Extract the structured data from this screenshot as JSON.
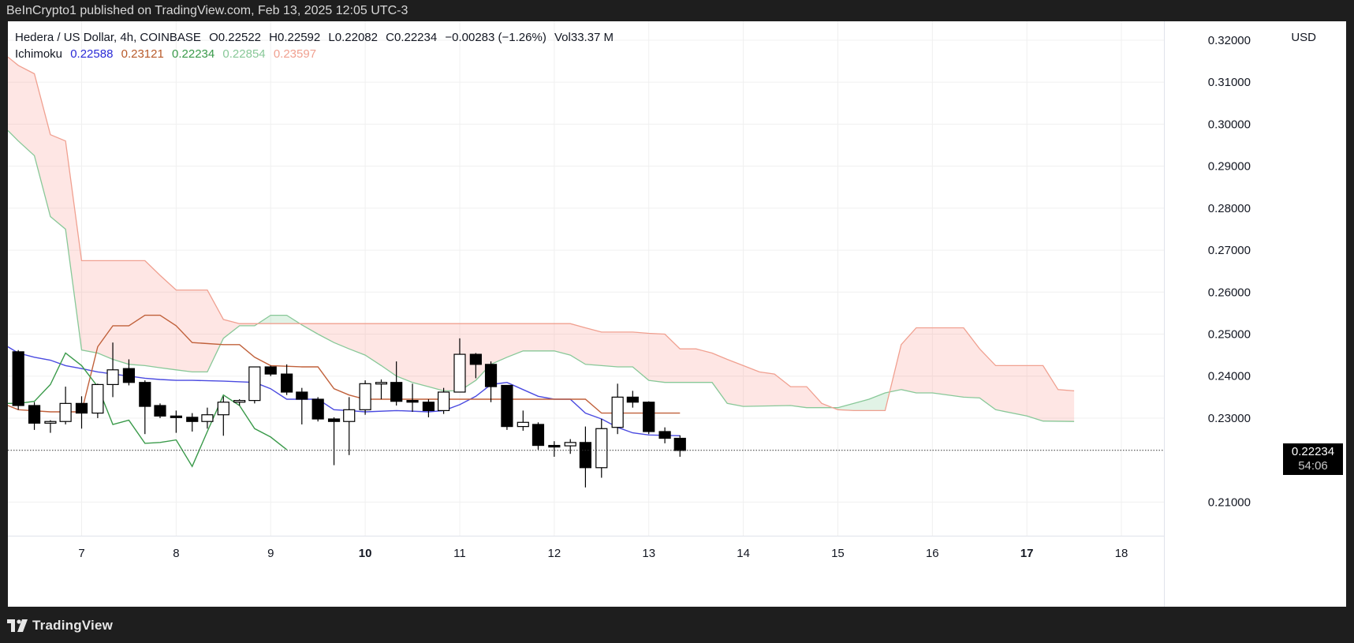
{
  "header": {
    "published": "BeInCrypto1 published on TradingView.com, Feb 13, 2025 12:05 UTC-3"
  },
  "legend": {
    "symbol": "Hedera / US Dollar, 4h, COINBASE",
    "open": "O0.22522",
    "high": "H0.22592",
    "low": "L0.22082",
    "close": "C0.22234",
    "change": "−0.00283 (−1.26%)",
    "volume": "Vol33.37 M",
    "indicator": "Ichimoku",
    "ichimoku_values": [
      "0.22588",
      "0.23121",
      "0.22234",
      "0.22854",
      "0.23597"
    ],
    "ichimoku_colors": [
      "#2a2ad6",
      "#b85a2a",
      "#3a9a4a",
      "#88c898",
      "#f0a090"
    ]
  },
  "currency": "USD",
  "last_price": "0.22234",
  "countdown": "54:06",
  "footer": {
    "brand": "TradingView"
  },
  "chart_data": {
    "type": "candlestick",
    "ylim": [
      0.202,
      0.3245
    ],
    "xlim": [
      6.22,
      18.45
    ],
    "y_ticks": [
      "0.21000",
      "0.23000",
      "0.24000",
      "0.25000",
      "0.26000",
      "0.27000",
      "0.28000",
      "0.29000",
      "0.30000",
      "0.31000",
      "0.32000"
    ],
    "x_ticks": [
      {
        "label": "7",
        "x": 7,
        "bold": false
      },
      {
        "label": "8",
        "x": 8,
        "bold": false
      },
      {
        "label": "9",
        "x": 9,
        "bold": false
      },
      {
        "label": "10",
        "x": 10,
        "bold": true
      },
      {
        "label": "11",
        "x": 11,
        "bold": false
      },
      {
        "label": "12",
        "x": 12,
        "bold": false
      },
      {
        "label": "13",
        "x": 13,
        "bold": false
      },
      {
        "label": "14",
        "x": 14,
        "bold": false
      },
      {
        "label": "15",
        "x": 15,
        "bold": false
      },
      {
        "label": "16",
        "x": 16,
        "bold": false
      },
      {
        "label": "17",
        "x": 17,
        "bold": true
      },
      {
        "label": "18",
        "x": 18,
        "bold": false
      }
    ],
    "candles": [
      {
        "t": 6.33,
        "o": 0.2458,
        "h": 0.2462,
        "l": 0.232,
        "c": 0.233
      },
      {
        "t": 6.5,
        "o": 0.233,
        "h": 0.2338,
        "l": 0.2272,
        "c": 0.2288
      },
      {
        "t": 6.67,
        "o": 0.2288,
        "h": 0.2295,
        "l": 0.2265,
        "c": 0.2292
      },
      {
        "t": 6.83,
        "o": 0.2292,
        "h": 0.2375,
        "l": 0.2285,
        "c": 0.2335
      },
      {
        "t": 7.0,
        "o": 0.2335,
        "h": 0.2352,
        "l": 0.2275,
        "c": 0.2312
      },
      {
        "t": 7.17,
        "o": 0.2312,
        "h": 0.2382,
        "l": 0.23,
        "c": 0.238
      },
      {
        "t": 7.33,
        "o": 0.238,
        "h": 0.248,
        "l": 0.235,
        "c": 0.2415
      },
      {
        "t": 7.5,
        "o": 0.2418,
        "h": 0.244,
        "l": 0.2378,
        "c": 0.2385
      },
      {
        "t": 7.67,
        "o": 0.2385,
        "h": 0.239,
        "l": 0.2262,
        "c": 0.2328
      },
      {
        "t": 7.83,
        "o": 0.233,
        "h": 0.2335,
        "l": 0.23,
        "c": 0.2305
      },
      {
        "t": 8.0,
        "o": 0.2305,
        "h": 0.2318,
        "l": 0.2265,
        "c": 0.2302
      },
      {
        "t": 8.17,
        "o": 0.2302,
        "h": 0.2312,
        "l": 0.2268,
        "c": 0.2292
      },
      {
        "t": 8.33,
        "o": 0.2292,
        "h": 0.2325,
        "l": 0.2275,
        "c": 0.2308
      },
      {
        "t": 8.5,
        "o": 0.2308,
        "h": 0.2352,
        "l": 0.2258,
        "c": 0.2338
      },
      {
        "t": 8.67,
        "o": 0.2338,
        "h": 0.2345,
        "l": 0.233,
        "c": 0.2342
      },
      {
        "t": 8.83,
        "o": 0.2342,
        "h": 0.2422,
        "l": 0.2335,
        "c": 0.2422
      },
      {
        "t": 9.0,
        "o": 0.2422,
        "h": 0.2425,
        "l": 0.24,
        "c": 0.2405
      },
      {
        "t": 9.17,
        "o": 0.2405,
        "h": 0.2428,
        "l": 0.2355,
        "c": 0.2362
      },
      {
        "t": 9.33,
        "o": 0.2362,
        "h": 0.2372,
        "l": 0.2285,
        "c": 0.2345
      },
      {
        "t": 9.5,
        "o": 0.2345,
        "h": 0.235,
        "l": 0.2292,
        "c": 0.2298
      },
      {
        "t": 9.67,
        "o": 0.2298,
        "h": 0.2302,
        "l": 0.2188,
        "c": 0.2292
      },
      {
        "t": 9.83,
        "o": 0.2292,
        "h": 0.235,
        "l": 0.2212,
        "c": 0.232
      },
      {
        "t": 10.0,
        "o": 0.232,
        "h": 0.239,
        "l": 0.2308,
        "c": 0.2382
      },
      {
        "t": 10.17,
        "o": 0.2382,
        "h": 0.2392,
        "l": 0.2345,
        "c": 0.2385
      },
      {
        "t": 10.33,
        "o": 0.2385,
        "h": 0.2435,
        "l": 0.233,
        "c": 0.234
      },
      {
        "t": 10.5,
        "o": 0.2342,
        "h": 0.2382,
        "l": 0.2315,
        "c": 0.2338
      },
      {
        "t": 10.67,
        "o": 0.2338,
        "h": 0.2345,
        "l": 0.2302,
        "c": 0.2318
      },
      {
        "t": 10.83,
        "o": 0.2318,
        "h": 0.2372,
        "l": 0.231,
        "c": 0.2362
      },
      {
        "t": 11.0,
        "o": 0.2362,
        "h": 0.249,
        "l": 0.2362,
        "c": 0.2452
      },
      {
        "t": 11.17,
        "o": 0.2452,
        "h": 0.2455,
        "l": 0.2395,
        "c": 0.2428
      },
      {
        "t": 11.33,
        "o": 0.2428,
        "h": 0.2435,
        "l": 0.2338,
        "c": 0.2375
      },
      {
        "t": 11.5,
        "o": 0.2378,
        "h": 0.2378,
        "l": 0.2272,
        "c": 0.228
      },
      {
        "t": 11.67,
        "o": 0.228,
        "h": 0.2318,
        "l": 0.227,
        "c": 0.229
      },
      {
        "t": 11.83,
        "o": 0.2285,
        "h": 0.229,
        "l": 0.2225,
        "c": 0.2235
      },
      {
        "t": 12.0,
        "o": 0.2235,
        "h": 0.2245,
        "l": 0.2208,
        "c": 0.2234
      },
      {
        "t": 12.17,
        "o": 0.2234,
        "h": 0.225,
        "l": 0.2215,
        "c": 0.2242
      },
      {
        "t": 12.33,
        "o": 0.2242,
        "h": 0.228,
        "l": 0.2135,
        "c": 0.2182
      },
      {
        "t": 12.5,
        "o": 0.2182,
        "h": 0.2298,
        "l": 0.2158,
        "c": 0.2275
      },
      {
        "t": 12.67,
        "o": 0.2278,
        "h": 0.2382,
        "l": 0.2262,
        "c": 0.235
      },
      {
        "t": 12.83,
        "o": 0.235,
        "h": 0.2365,
        "l": 0.2325,
        "c": 0.2338
      },
      {
        "t": 13.0,
        "o": 0.2338,
        "h": 0.234,
        "l": 0.2262,
        "c": 0.2268
      },
      {
        "t": 13.17,
        "o": 0.2268,
        "h": 0.2278,
        "l": 0.224,
        "c": 0.2252
      },
      {
        "t": 13.33,
        "o": 0.2252,
        "h": 0.2259,
        "l": 0.2208,
        "c": 0.2223
      }
    ],
    "series": [
      {
        "key": "tenkan",
        "color": "#4a4ae0",
        "points": [
          [
            6.22,
            0.247
          ],
          [
            6.33,
            0.2455
          ],
          [
            6.5,
            0.2445
          ],
          [
            6.67,
            0.2438
          ],
          [
            6.83,
            0.2425
          ],
          [
            7.0,
            0.2418
          ],
          [
            7.17,
            0.241
          ],
          [
            7.33,
            0.2405
          ],
          [
            7.5,
            0.24
          ],
          [
            7.67,
            0.2395
          ],
          [
            7.83,
            0.2392
          ],
          [
            8.0,
            0.239
          ],
          [
            8.17,
            0.239
          ],
          [
            8.5,
            0.2388
          ],
          [
            8.83,
            0.2385
          ],
          [
            9.0,
            0.237
          ],
          [
            9.17,
            0.2345
          ],
          [
            9.5,
            0.2345
          ],
          [
            9.67,
            0.232
          ],
          [
            9.83,
            0.2318
          ],
          [
            10.0,
            0.2315
          ],
          [
            10.33,
            0.2318
          ],
          [
            10.67,
            0.2315
          ],
          [
            10.83,
            0.2318
          ],
          [
            11.0,
            0.2332
          ],
          [
            11.17,
            0.2352
          ],
          [
            11.33,
            0.238
          ],
          [
            11.5,
            0.2385
          ],
          [
            11.67,
            0.2368
          ],
          [
            11.83,
            0.2352
          ],
          [
            12.0,
            0.2345
          ],
          [
            12.17,
            0.2345
          ],
          [
            12.33,
            0.2312
          ],
          [
            12.5,
            0.2298
          ],
          [
            12.67,
            0.2278
          ],
          [
            12.83,
            0.2265
          ],
          [
            13.0,
            0.226
          ],
          [
            13.33,
            0.2258
          ]
        ]
      },
      {
        "key": "kijun",
        "color": "#c0603a",
        "points": [
          [
            6.22,
            0.233
          ],
          [
            6.33,
            0.232
          ],
          [
            6.67,
            0.2315
          ],
          [
            7.0,
            0.2315
          ],
          [
            7.17,
            0.247
          ],
          [
            7.33,
            0.252
          ],
          [
            7.5,
            0.252
          ],
          [
            7.67,
            0.2545
          ],
          [
            7.83,
            0.2545
          ],
          [
            8.0,
            0.252
          ],
          [
            8.17,
            0.248
          ],
          [
            8.5,
            0.2475
          ],
          [
            8.67,
            0.2475
          ],
          [
            8.83,
            0.2445
          ],
          [
            9.0,
            0.2425
          ],
          [
            9.33,
            0.2422
          ],
          [
            9.5,
            0.2422
          ],
          [
            9.67,
            0.237
          ],
          [
            9.83,
            0.2355
          ],
          [
            10.0,
            0.2345
          ],
          [
            11.33,
            0.2345
          ],
          [
            11.5,
            0.2345
          ],
          [
            12.17,
            0.2345
          ],
          [
            12.33,
            0.2345
          ],
          [
            12.5,
            0.2312
          ],
          [
            12.67,
            0.2312
          ],
          [
            12.83,
            0.2312
          ],
          [
            13.33,
            0.2312
          ]
        ]
      },
      {
        "key": "chikou",
        "color": "#3a9a4a",
        "points": [
          [
            6.22,
            0.2335
          ],
          [
            6.33,
            0.2335
          ],
          [
            6.5,
            0.234
          ],
          [
            6.67,
            0.238
          ],
          [
            6.83,
            0.2455
          ],
          [
            7.0,
            0.2425
          ],
          [
            7.17,
            0.2375
          ],
          [
            7.33,
            0.2285
          ],
          [
            7.5,
            0.2295
          ],
          [
            7.67,
            0.224
          ],
          [
            7.83,
            0.2242
          ],
          [
            8.0,
            0.2248
          ],
          [
            8.17,
            0.2185
          ],
          [
            8.33,
            0.2268
          ],
          [
            8.5,
            0.2355
          ],
          [
            8.67,
            0.233
          ],
          [
            8.83,
            0.2275
          ],
          [
            9.0,
            0.2255
          ],
          [
            9.17,
            0.2225
          ]
        ]
      }
    ],
    "cloud": {
      "span_a": [
        [
          6.22,
          0.2985
        ],
        [
          6.33,
          0.296
        ],
        [
          6.5,
          0.2925
        ],
        [
          6.67,
          0.278
        ],
        [
          6.83,
          0.275
        ],
        [
          7.0,
          0.2462
        ],
        [
          7.17,
          0.2455
        ],
        [
          7.33,
          0.244
        ],
        [
          7.5,
          0.2428
        ],
        [
          7.67,
          0.2425
        ],
        [
          7.83,
          0.242
        ],
        [
          8.0,
          0.2415
        ],
        [
          8.17,
          0.241
        ],
        [
          8.33,
          0.241
        ],
        [
          8.5,
          0.249
        ],
        [
          8.67,
          0.252
        ],
        [
          8.83,
          0.252
        ],
        [
          9.0,
          0.2545
        ],
        [
          9.17,
          0.2545
        ],
        [
          9.33,
          0.2522
        ],
        [
          9.5,
          0.25
        ],
        [
          9.67,
          0.248
        ],
        [
          9.83,
          0.2465
        ],
        [
          10.0,
          0.245
        ],
        [
          10.17,
          0.2425
        ],
        [
          10.33,
          0.24
        ],
        [
          10.5,
          0.2385
        ],
        [
          10.67,
          0.2375
        ],
        [
          10.83,
          0.2365
        ],
        [
          11.0,
          0.2365
        ],
        [
          11.17,
          0.239
        ],
        [
          11.33,
          0.2428
        ],
        [
          11.5,
          0.2445
        ],
        [
          11.67,
          0.246
        ],
        [
          11.83,
          0.246
        ],
        [
          12.0,
          0.246
        ],
        [
          12.17,
          0.245
        ],
        [
          12.33,
          0.2428
        ],
        [
          12.5,
          0.2425
        ],
        [
          12.67,
          0.2422
        ],
        [
          12.83,
          0.2422
        ],
        [
          13.0,
          0.239
        ],
        [
          13.17,
          0.2385
        ],
        [
          13.33,
          0.2385
        ],
        [
          13.67,
          0.2385
        ],
        [
          13.83,
          0.2335
        ],
        [
          14.0,
          0.2328
        ],
        [
          14.5,
          0.233
        ],
        [
          14.67,
          0.2325
        ],
        [
          15.0,
          0.2325
        ],
        [
          15.17,
          0.2335
        ],
        [
          15.33,
          0.2345
        ],
        [
          15.5,
          0.236
        ],
        [
          15.67,
          0.2368
        ],
        [
          15.83,
          0.236
        ],
        [
          16.0,
          0.236
        ],
        [
          16.33,
          0.235
        ],
        [
          16.5,
          0.2348
        ],
        [
          16.67,
          0.232
        ],
        [
          17.0,
          0.2305
        ],
        [
          17.17,
          0.2293
        ],
        [
          17.5,
          0.2292
        ]
      ],
      "span_b": [
        [
          6.22,
          0.316
        ],
        [
          6.33,
          0.314
        ],
        [
          6.5,
          0.312
        ],
        [
          6.67,
          0.2975
        ],
        [
          6.83,
          0.296
        ],
        [
          7.0,
          0.2675
        ],
        [
          7.17,
          0.2675
        ],
        [
          7.33,
          0.2675
        ],
        [
          7.5,
          0.2675
        ],
        [
          7.67,
          0.2675
        ],
        [
          7.83,
          0.264
        ],
        [
          8.0,
          0.2605
        ],
        [
          8.17,
          0.2605
        ],
        [
          8.33,
          0.2605
        ],
        [
          8.5,
          0.2535
        ],
        [
          8.67,
          0.2525
        ],
        [
          8.83,
          0.2525
        ],
        [
          9.5,
          0.2525
        ],
        [
          10.0,
          0.2525
        ],
        [
          10.5,
          0.2525
        ],
        [
          11.0,
          0.2525
        ],
        [
          11.5,
          0.2525
        ],
        [
          12.0,
          0.2525
        ],
        [
          12.17,
          0.2525
        ],
        [
          12.33,
          0.2515
        ],
        [
          12.5,
          0.2505
        ],
        [
          12.83,
          0.2505
        ],
        [
          13.0,
          0.2502
        ],
        [
          13.17,
          0.25
        ],
        [
          13.33,
          0.2465
        ],
        [
          13.5,
          0.2465
        ],
        [
          13.67,
          0.2455
        ],
        [
          13.83,
          0.244
        ],
        [
          14.0,
          0.2425
        ],
        [
          14.17,
          0.241
        ],
        [
          14.33,
          0.2405
        ],
        [
          14.5,
          0.2375
        ],
        [
          14.67,
          0.2375
        ],
        [
          14.83,
          0.2335
        ],
        [
          15.0,
          0.232
        ],
        [
          15.17,
          0.2318
        ],
        [
          15.33,
          0.2318
        ],
        [
          15.5,
          0.2318
        ],
        [
          15.67,
          0.2475
        ],
        [
          15.83,
          0.2515
        ],
        [
          16.0,
          0.2515
        ],
        [
          16.33,
          0.2515
        ],
        [
          16.5,
          0.2465
        ],
        [
          16.67,
          0.2425
        ],
        [
          16.83,
          0.2425
        ],
        [
          17.17,
          0.2425
        ],
        [
          17.33,
          0.2368
        ],
        [
          17.5,
          0.2365
        ]
      ]
    }
  }
}
